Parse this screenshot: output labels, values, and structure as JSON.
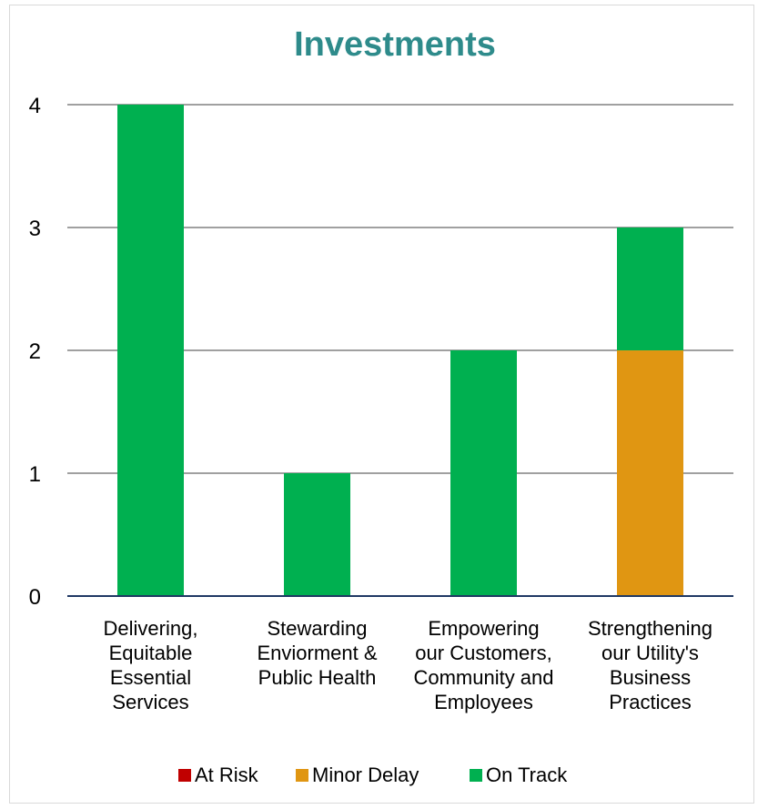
{
  "chart_data": {
    "type": "bar",
    "stacked": true,
    "title": "Investments",
    "categories": [
      [
        "Delivering,",
        "Equitable",
        "Essential",
        "Services"
      ],
      [
        "Stewarding",
        "Enviorment &",
        "Public Health"
      ],
      [
        "Empowering",
        "our Customers,",
        "Community and",
        "Employees"
      ],
      [
        "Strengthening",
        "our Utility's",
        "Business",
        "Practices"
      ]
    ],
    "series": [
      {
        "name": "At Risk",
        "color": "#c00000",
        "values": [
          0,
          0,
          0,
          0
        ]
      },
      {
        "name": "Minor Delay",
        "color": "#e09612",
        "values": [
          0,
          0,
          0,
          2
        ]
      },
      {
        "name": "On Track",
        "color": "#00b050",
        "values": [
          4,
          1,
          2,
          1
        ]
      }
    ],
    "ylim": [
      0,
      4
    ],
    "yticks": [
      "0",
      "1",
      "2",
      "3",
      "4"
    ],
    "grid": true,
    "legend": "bottom",
    "colors": {
      "title": "#2e8b8b",
      "grid": "#808080",
      "axis": "#1f3864"
    }
  }
}
